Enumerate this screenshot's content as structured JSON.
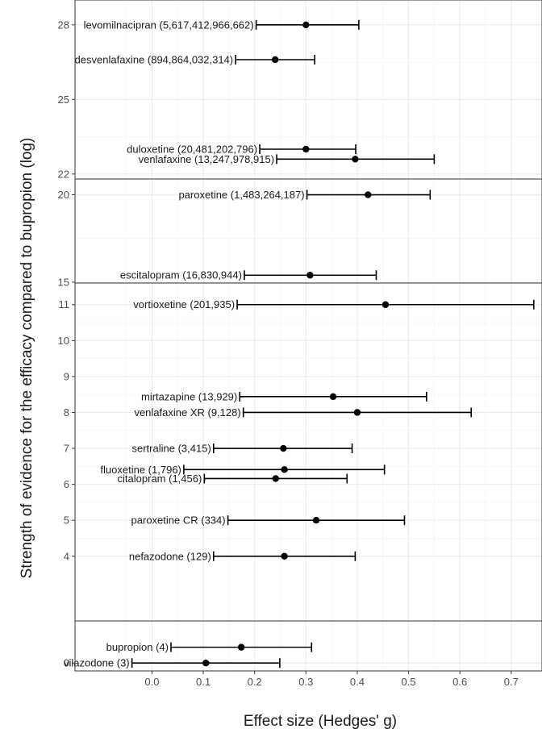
{
  "chart_data": {
    "type": "scatter",
    "subtype": "forest-plot-with-error-bars",
    "xlabel": "Effect size (Hedges' g)",
    "ylabel": "Strength of evidence for the efficacy compared to bupropion (log)",
    "xlim": [
      -0.15,
      0.76
    ],
    "x_ticks": [
      "0.0",
      "0.1",
      "0.2",
      "0.3",
      "0.4",
      "0.5",
      "0.6",
      "0.7"
    ],
    "grid": true,
    "legend": "none",
    "panels": [
      {
        "ylim": [
          21.8,
          29.0
        ],
        "y_ticks": [
          "22",
          "25",
          "28"
        ],
        "points": [
          {
            "label": "levomilnacipran (5,617,412,966,662)",
            "y": 28.0,
            "x": 0.3,
            "lo": 0.203,
            "hi": 0.403
          },
          {
            "label": "desvenlafaxine (894,864,032,314)",
            "y": 26.6,
            "x": 0.24,
            "lo": 0.163,
            "hi": 0.317
          },
          {
            "label": "duloxetine (20,481,202,796)",
            "y": 23.0,
            "x": 0.3,
            "lo": 0.21,
            "hi": 0.397
          },
          {
            "label": "venlafaxine (13,247,978,915)",
            "y": 22.6,
            "x": 0.396,
            "lo": 0.243,
            "hi": 0.55
          }
        ]
      },
      {
        "ylim": [
          14.95,
          20.9
        ],
        "y_ticks": [
          "15",
          "20"
        ],
        "points": [
          {
            "label": "paroxetine (1,483,264,187)",
            "y": 20.0,
            "x": 0.421,
            "lo": 0.302,
            "hi": 0.542
          },
          {
            "label": "escitalopram (16,830,944)",
            "y": 15.4,
            "x": 0.308,
            "lo": 0.18,
            "hi": 0.437
          }
        ]
      },
      {
        "ylim": [
          2.2,
          11.6
        ],
        "y_ticks": [
          "4",
          "5",
          "6",
          "7",
          "8",
          "9",
          "10",
          "11"
        ],
        "points": [
          {
            "label": "vortioxetine (201,935)",
            "y": 11.0,
            "x": 0.455,
            "lo": 0.166,
            "hi": 0.744
          },
          {
            "label": "mirtazapine (13,929)",
            "y": 8.44,
            "x": 0.353,
            "lo": 0.171,
            "hi": 0.535
          },
          {
            "label": "venlafaxine XR (9,128)",
            "y": 8.0,
            "x": 0.4,
            "lo": 0.178,
            "hi": 0.622
          },
          {
            "label": "sertraline (3,415)",
            "y": 7.0,
            "x": 0.256,
            "lo": 0.12,
            "hi": 0.39
          },
          {
            "label": "fluoxetine (1,796)",
            "y": 6.41,
            "x": 0.258,
            "lo": 0.062,
            "hi": 0.453
          },
          {
            "label": "citalopram (1,456)",
            "y": 6.16,
            "x": 0.241,
            "lo": 0.102,
            "hi": 0.38
          },
          {
            "label": "paroxetine CR (334)",
            "y": 5.0,
            "x": 0.32,
            "lo": 0.148,
            "hi": 0.492
          },
          {
            "label": "nefazodone (129)",
            "y": 4.0,
            "x": 0.258,
            "lo": 0.12,
            "hi": 0.396
          }
        ]
      },
      {
        "ylim": [
          -0.3,
          1.6
        ],
        "y_ticks": [
          "0"
        ],
        "points": [
          {
            "label": "bupropion (4)",
            "y": 0.6,
            "x": 0.174,
            "lo": 0.037,
            "hi": 0.311
          },
          {
            "label": "vilazodone (3)",
            "y": 0.0,
            "x": 0.105,
            "lo": -0.039,
            "hi": 0.249
          }
        ]
      }
    ]
  }
}
